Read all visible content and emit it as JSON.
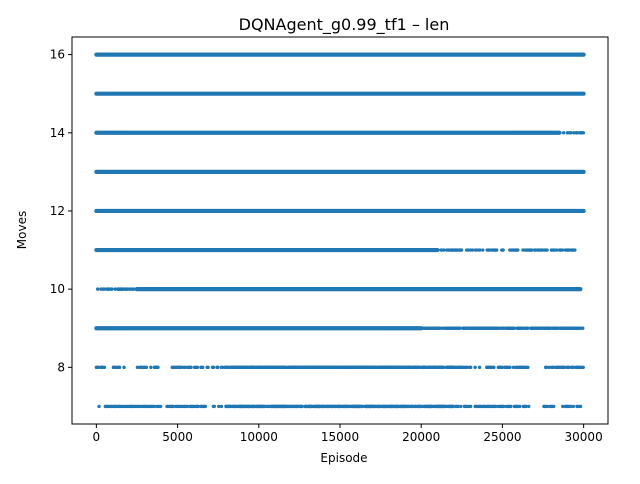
{
  "chart_data": {
    "type": "scatter",
    "title": "DQNAgent_g0.99_tf1 – len",
    "xlabel": "Episode",
    "ylabel": "Moves",
    "xlim": [
      -1500,
      31500
    ],
    "ylim": [
      6.55,
      16.45
    ],
    "xticks": [
      0,
      5000,
      10000,
      15000,
      20000,
      25000,
      30000
    ],
    "yticks": [
      8,
      10,
      12,
      14,
      16
    ],
    "grid": false,
    "legend": "none",
    "marker_color": "#1f77b4",
    "series": [
      {
        "x_range": [
          0,
          30000
        ],
        "levels": [
          {
            "y": 16,
            "density": "continuous"
          },
          {
            "y": 15,
            "density": "continuous"
          },
          {
            "y": 14,
            "density": "continuous",
            "tail_sparse_from": 28500
          },
          {
            "y": 13,
            "density": "continuous"
          },
          {
            "y": 12,
            "density": "continuous"
          },
          {
            "y": 11,
            "density": "continuous",
            "tail_sparse_from": 21000,
            "x_max": 29700
          },
          {
            "y": 10,
            "density": "mostly_continuous",
            "sparse_before": 2500,
            "x_max": 29800
          },
          {
            "y": 9,
            "density": "mostly_continuous",
            "sparse_after": 20000
          },
          {
            "y": 8,
            "density": "sparse",
            "gaps": [
              [
                500,
                1000
              ],
              [
                1800,
                2500
              ],
              [
                3800,
                4600
              ],
              [
                23600,
                24000
              ],
              [
                26600,
                27600
              ]
            ]
          },
          {
            "y": 7,
            "density": "sparse",
            "gaps": [
              [
                200,
                500
              ],
              [
                4000,
                4300
              ],
              [
                6800,
                7100
              ],
              [
                26700,
                27500
              ],
              [
                28200,
                28700
              ]
            ]
          }
        ]
      }
    ]
  }
}
